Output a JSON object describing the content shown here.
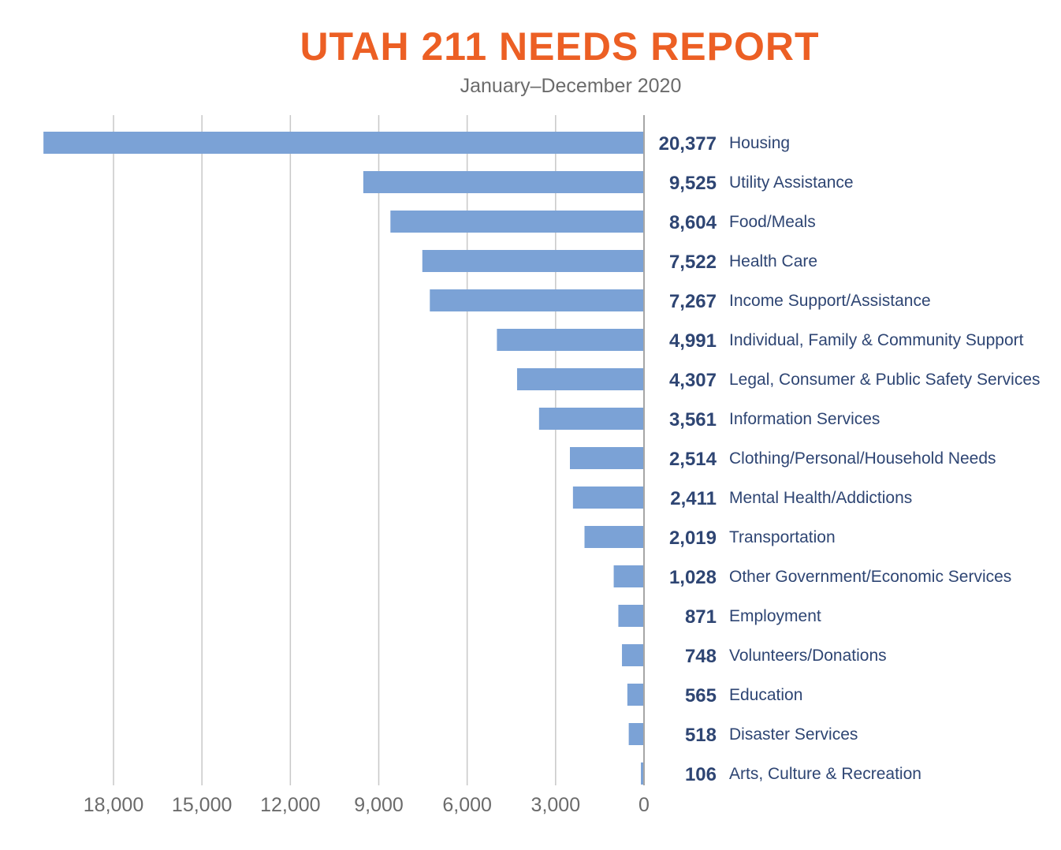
{
  "chart_data": {
    "type": "bar",
    "orientation": "horizontal",
    "title": "UTAH 211 NEEDS REPORT",
    "subtitle": "January–December 2020",
    "categories": [
      "Housing",
      "Utility Assistance",
      "Food/Meals",
      "Health Care",
      "Income Support/Assistance",
      "Individual, Family & Community Support",
      "Legal, Consumer & Public Safety Services",
      "Information Services",
      "Clothing/Personal/Household Needs",
      "Mental Health/Addictions",
      "Transportation",
      "Other Government/Economic Services",
      "Employment",
      "Volunteers/Donations",
      "Education",
      "Disaster Services",
      "Arts, Culture & Recreation"
    ],
    "values": [
      20377,
      9525,
      8604,
      7522,
      7267,
      4991,
      4307,
      3561,
      2514,
      2411,
      2019,
      1028,
      871,
      748,
      565,
      518,
      106
    ],
    "value_labels": [
      "20,377",
      "9,525",
      "8,604",
      "7,522",
      "7,267",
      "4,991",
      "4,307",
      "3,561",
      "2,514",
      "2,411",
      "2,019",
      "1,028",
      "871",
      "748",
      "565",
      "518",
      "106"
    ],
    "xticks": [
      18000,
      15000,
      12000,
      9000,
      6000,
      3000,
      0
    ],
    "xtick_labels": [
      "18,000",
      "15,000",
      "12,000",
      "9,000",
      "6,000",
      "3,000",
      "0"
    ],
    "xlim": [
      0,
      20377
    ],
    "x_direction": "reversed",
    "grid": "vertical",
    "colors": {
      "bar": "#7ba2d6",
      "value_text": "#2e4573",
      "title": "#ec5f24",
      "grid": "#c8c8c8",
      "axis": "#a6a6a6",
      "tick_text": "#6b6b6b"
    }
  }
}
